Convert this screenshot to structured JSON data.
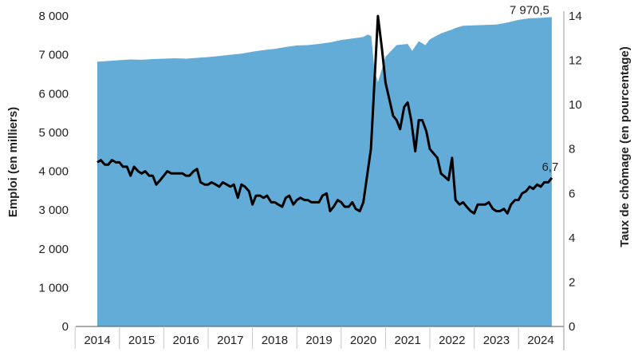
{
  "chart_data": {
    "type": "area+line",
    "left_axis": {
      "label": "Emploi (en milliers)",
      "ylim": [
        0,
        8000
      ],
      "ticks": [
        "0",
        "1 000",
        "2 000",
        "3 000",
        "4 000",
        "5 000",
        "6 000",
        "7 000",
        "8 000"
      ]
    },
    "right_axis": {
      "label": "Taux de chômage (en pourcentage)",
      "ylim": [
        0,
        14
      ],
      "ticks": [
        "0",
        "2",
        "4",
        "6",
        "8",
        "10",
        "12",
        "14"
      ]
    },
    "x_axis": {
      "ticks": [
        "2014",
        "2015",
        "2016",
        "2017",
        "2018",
        "2019",
        "2020",
        "2021",
        "2022",
        "2023",
        "2024"
      ],
      "start": 2014.0,
      "end": 2024.25
    },
    "grid": false,
    "legend": "none",
    "colors": {
      "area": "#64acd8",
      "line": "#000000",
      "axis": "#555555"
    },
    "series": [
      {
        "type": "area",
        "axis": "left",
        "points": [
          [
            2014.0,
            6820
          ],
          [
            2014.25,
            6840
          ],
          [
            2014.5,
            6860
          ],
          [
            2014.75,
            6880
          ],
          [
            2015.0,
            6870
          ],
          [
            2015.25,
            6890
          ],
          [
            2015.5,
            6900
          ],
          [
            2015.75,
            6910
          ],
          [
            2016.0,
            6900
          ],
          [
            2016.25,
            6920
          ],
          [
            2016.5,
            6940
          ],
          [
            2016.75,
            6970
          ],
          [
            2017.0,
            7000
          ],
          [
            2017.25,
            7030
          ],
          [
            2017.5,
            7080
          ],
          [
            2017.75,
            7120
          ],
          [
            2018.0,
            7150
          ],
          [
            2018.25,
            7200
          ],
          [
            2018.5,
            7240
          ],
          [
            2018.75,
            7250
          ],
          [
            2019.0,
            7280
          ],
          [
            2019.25,
            7320
          ],
          [
            2019.5,
            7380
          ],
          [
            2019.75,
            7420
          ],
          [
            2020.0,
            7460
          ],
          [
            2020.1,
            7520
          ],
          [
            2020.18,
            7480
          ],
          [
            2020.25,
            6600
          ],
          [
            2020.33,
            6300
          ],
          [
            2020.5,
            6950
          ],
          [
            2020.75,
            7250
          ],
          [
            2021.0,
            7280
          ],
          [
            2021.1,
            7100
          ],
          [
            2021.25,
            7350
          ],
          [
            2021.4,
            7250
          ],
          [
            2021.5,
            7400
          ],
          [
            2021.75,
            7550
          ],
          [
            2022.0,
            7650
          ],
          [
            2022.1,
            7700
          ],
          [
            2022.25,
            7750
          ],
          [
            2022.5,
            7760
          ],
          [
            2022.75,
            7770
          ],
          [
            2023.0,
            7780
          ],
          [
            2023.25,
            7830
          ],
          [
            2023.5,
            7900
          ],
          [
            2023.75,
            7940
          ],
          [
            2024.0,
            7950
          ],
          [
            2024.25,
            7970.5
          ]
        ]
      },
      {
        "type": "line",
        "axis": "right",
        "points": [
          [
            2014.0,
            7.4
          ],
          [
            2014.08,
            7.5
          ],
          [
            2014.17,
            7.3
          ],
          [
            2014.25,
            7.3
          ],
          [
            2014.33,
            7.5
          ],
          [
            2014.42,
            7.4
          ],
          [
            2014.5,
            7.4
          ],
          [
            2014.58,
            7.2
          ],
          [
            2014.67,
            7.2
          ],
          [
            2014.75,
            6.8
          ],
          [
            2014.83,
            7.2
          ],
          [
            2014.92,
            7.0
          ],
          [
            2015.0,
            6.9
          ],
          [
            2015.08,
            7.0
          ],
          [
            2015.17,
            6.8
          ],
          [
            2015.25,
            6.8
          ],
          [
            2015.33,
            6.4
          ],
          [
            2015.42,
            6.6
          ],
          [
            2015.5,
            6.8
          ],
          [
            2015.58,
            7.0
          ],
          [
            2015.67,
            6.9
          ],
          [
            2015.75,
            6.9
          ],
          [
            2015.83,
            6.9
          ],
          [
            2015.92,
            6.9
          ],
          [
            2016.0,
            6.8
          ],
          [
            2016.08,
            6.8
          ],
          [
            2016.17,
            7.0
          ],
          [
            2016.25,
            7.1
          ],
          [
            2016.33,
            6.5
          ],
          [
            2016.42,
            6.4
          ],
          [
            2016.5,
            6.4
          ],
          [
            2016.58,
            6.5
          ],
          [
            2016.67,
            6.4
          ],
          [
            2016.75,
            6.3
          ],
          [
            2016.83,
            6.5
          ],
          [
            2016.92,
            6.4
          ],
          [
            2017.0,
            6.3
          ],
          [
            2017.08,
            6.4
          ],
          [
            2017.17,
            5.8
          ],
          [
            2017.25,
            6.4
          ],
          [
            2017.33,
            6.3
          ],
          [
            2017.42,
            6.1
          ],
          [
            2017.5,
            5.5
          ],
          [
            2017.58,
            5.9
          ],
          [
            2017.67,
            5.9
          ],
          [
            2017.75,
            5.8
          ],
          [
            2017.83,
            5.9
          ],
          [
            2017.92,
            5.6
          ],
          [
            2018.0,
            5.6
          ],
          [
            2018.08,
            5.5
          ],
          [
            2018.17,
            5.4
          ],
          [
            2018.25,
            5.8
          ],
          [
            2018.33,
            5.9
          ],
          [
            2018.42,
            5.5
          ],
          [
            2018.5,
            5.7
          ],
          [
            2018.58,
            5.8
          ],
          [
            2018.67,
            5.7
          ],
          [
            2018.75,
            5.7
          ],
          [
            2018.83,
            5.6
          ],
          [
            2018.92,
            5.6
          ],
          [
            2019.0,
            5.6
          ],
          [
            2019.08,
            5.9
          ],
          [
            2019.17,
            6.0
          ],
          [
            2019.25,
            5.2
          ],
          [
            2019.33,
            5.4
          ],
          [
            2019.42,
            5.7
          ],
          [
            2019.5,
            5.6
          ],
          [
            2019.58,
            5.4
          ],
          [
            2019.67,
            5.4
          ],
          [
            2019.75,
            5.6
          ],
          [
            2019.83,
            5.3
          ],
          [
            2019.92,
            5.2
          ],
          [
            2020.0,
            5.6
          ],
          [
            2020.17,
            8.0
          ],
          [
            2020.33,
            14.0
          ],
          [
            2020.42,
            12.5
          ],
          [
            2020.5,
            11.0
          ],
          [
            2020.67,
            9.5
          ],
          [
            2020.75,
            9.3
          ],
          [
            2020.83,
            8.9
          ],
          [
            2020.92,
            9.9
          ],
          [
            2021.0,
            10.1
          ],
          [
            2021.08,
            9.3
          ],
          [
            2021.17,
            7.9
          ],
          [
            2021.25,
            9.3
          ],
          [
            2021.33,
            9.3
          ],
          [
            2021.42,
            8.8
          ],
          [
            2021.5,
            8.0
          ],
          [
            2021.67,
            7.6
          ],
          [
            2021.75,
            6.9
          ],
          [
            2021.92,
            6.6
          ],
          [
            2022.0,
            7.6
          ],
          [
            2022.08,
            5.7
          ],
          [
            2022.17,
            5.5
          ],
          [
            2022.25,
            5.6
          ],
          [
            2022.33,
            5.4
          ],
          [
            2022.42,
            5.2
          ],
          [
            2022.5,
            5.1
          ],
          [
            2022.58,
            5.5
          ],
          [
            2022.67,
            5.5
          ],
          [
            2022.75,
            5.5
          ],
          [
            2022.83,
            5.6
          ],
          [
            2022.92,
            5.3
          ],
          [
            2023.0,
            5.2
          ],
          [
            2023.08,
            5.2
          ],
          [
            2023.17,
            5.3
          ],
          [
            2023.25,
            5.1
          ],
          [
            2023.33,
            5.5
          ],
          [
            2023.42,
            5.7
          ],
          [
            2023.5,
            5.7
          ],
          [
            2023.58,
            6.0
          ],
          [
            2023.67,
            6.1
          ],
          [
            2023.75,
            6.3
          ],
          [
            2023.83,
            6.2
          ],
          [
            2023.92,
            6.4
          ],
          [
            2024.0,
            6.3
          ],
          [
            2024.08,
            6.5
          ],
          [
            2024.17,
            6.5
          ],
          [
            2024.25,
            6.7
          ]
        ]
      }
    ],
    "annotations": [
      {
        "series": 0,
        "text": "7 970,5"
      },
      {
        "series": 1,
        "text": "6,7"
      }
    ]
  }
}
